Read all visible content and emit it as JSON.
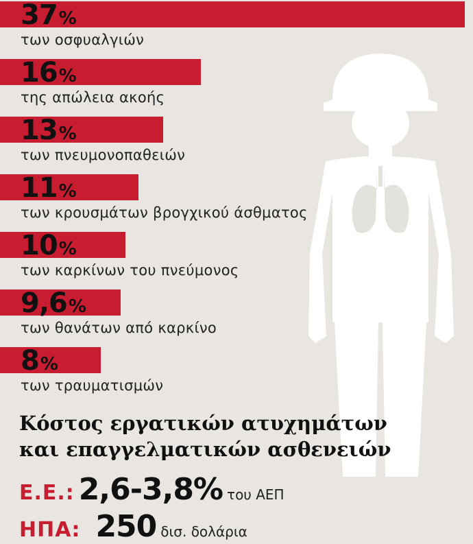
{
  "chart_data": {
    "type": "bar",
    "orientation": "horizontal",
    "categories": [
      "των οσφυαλγιών",
      "της απώλεια ακοής",
      "των πνευμονοπαθειών",
      "των κρουσμάτων βρογχικού άσθματος",
      "των καρκίνων του πνεύμονος",
      "των θανάτων από καρκίνο",
      "των τραυματισμών"
    ],
    "values": [
      37,
      16,
      13,
      11,
      10,
      9.6,
      8
    ],
    "value_labels": [
      "37",
      "16",
      "13",
      "11",
      "10",
      "9,6",
      "8"
    ],
    "unit": "%",
    "bar_color": "#c81d31",
    "xlim": [
      0,
      37
    ],
    "grid": false
  },
  "cost": {
    "title_line1": "Κόστος εργατικών ατυχημάτων",
    "title_line2": "και επαγγελματικών ασθενειών",
    "eu_label": "Ε.Ε.:",
    "eu_value": "2,6-3,8%",
    "eu_unit": "του ΑΕΠ",
    "usa_label": "ΗΠΑ:",
    "usa_value": "250",
    "usa_unit": "δισ. δολάρια"
  },
  "colors": {
    "accent": "#c81d31",
    "background": "#e9e6e1",
    "figure": "#ffffff"
  }
}
